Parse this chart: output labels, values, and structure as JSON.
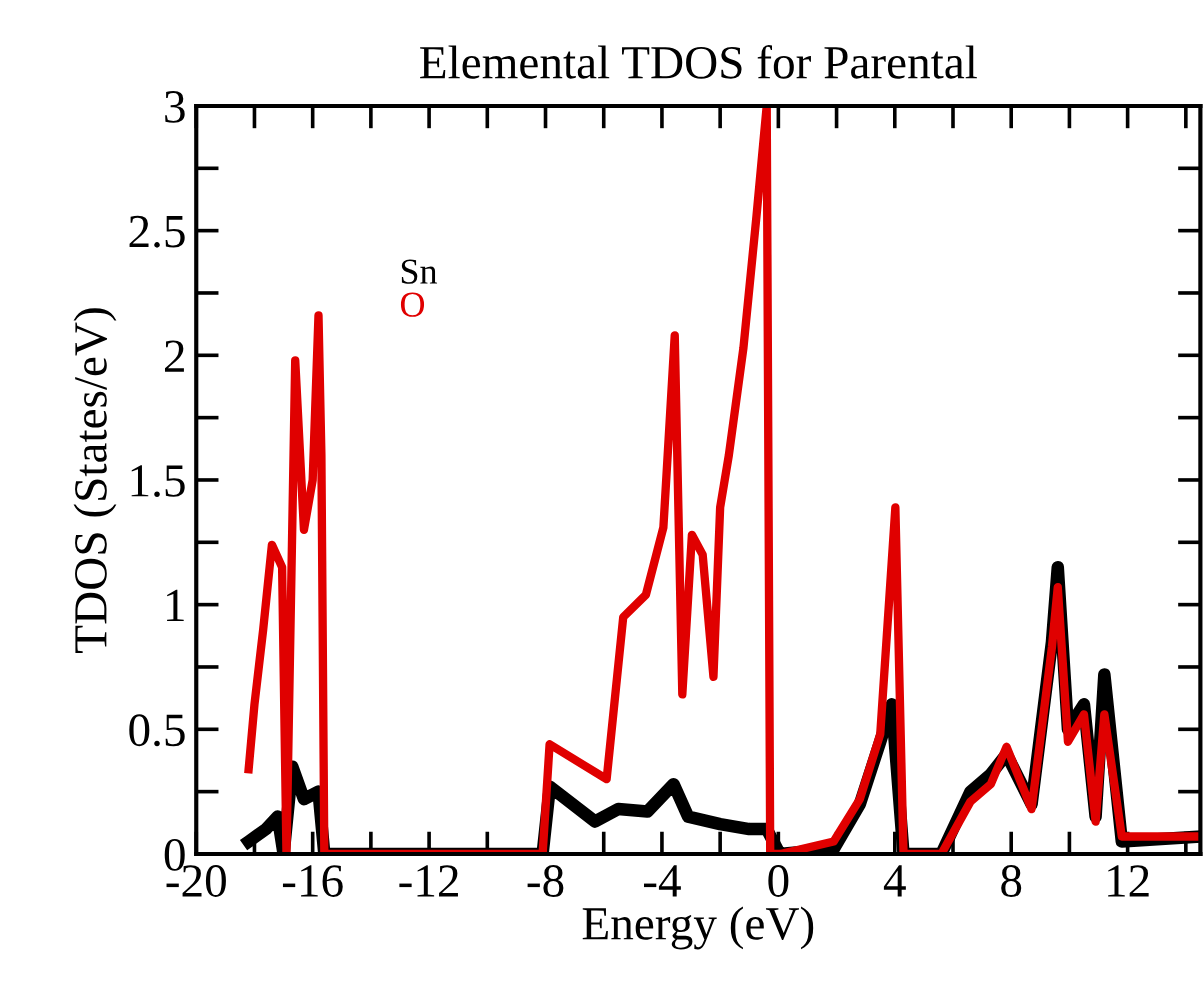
{
  "chart_data": {
    "type": "line",
    "title": "Elemental TDOS for Parental",
    "xlabel": "Energy (eV)",
    "ylabel": "TDOS (States/eV)",
    "xlim": [
      -20,
      14.5
    ],
    "xticks": [
      -20,
      {
        "value": -18,
        "label": null
      },
      -16,
      {
        "value": -14,
        "label": null
      },
      -12,
      {
        "value": -10,
        "label": null
      },
      -8,
      {
        "value": -6,
        "label": null
      },
      -4,
      {
        "value": -2,
        "label": null
      },
      0,
      {
        "value": 2,
        "label": null
      },
      4,
      {
        "value": 6,
        "label": null
      },
      8,
      {
        "value": 10,
        "label": null
      },
      12,
      {
        "value": 14,
        "label": null
      }
    ],
    "ylim": [
      0,
      3
    ],
    "yticks": [
      0,
      {
        "value": 0.25,
        "label": null
      },
      0.5,
      {
        "value": 0.75,
        "label": null
      },
      1,
      {
        "value": 1.25,
        "label": null
      },
      1.5,
      {
        "value": 1.75,
        "label": null
      },
      2,
      {
        "value": 2.25,
        "label": null
      },
      2.5,
      {
        "value": 2.75,
        "label": null
      },
      3
    ],
    "grid": false,
    "legend": "top left",
    "marker": "none",
    "line_style": "solid",
    "series": [
      {
        "name": "Sn",
        "color": "#000000",
        "x": [
          -18.2,
          -17.6,
          -17.2,
          -17.0,
          -16.7,
          -16.3,
          -15.8,
          -15.6,
          -8.1,
          -7.85,
          -6.3,
          -5.5,
          -4.5,
          -3.6,
          -3.1,
          -2.0,
          -1.0,
          -0.4,
          0.05,
          1.9,
          2.8,
          3.5,
          3.9,
          4.3,
          5.6,
          6.6,
          7.3,
          7.84,
          8.7,
          9.4,
          9.6,
          9.95,
          10.5,
          10.9,
          11.2,
          11.8,
          14.5
        ],
        "values": [
          0.05,
          0.1,
          0.15,
          0.0,
          0.35,
          0.22,
          0.25,
          0,
          0,
          0.27,
          0.13,
          0.18,
          0.17,
          0.28,
          0.15,
          0.12,
          0.1,
          0.1,
          0,
          0.02,
          0.2,
          0.45,
          0.6,
          0,
          0,
          0.25,
          0.32,
          0.4,
          0.2,
          0.85,
          1.15,
          0.5,
          0.6,
          0.15,
          0.72,
          0.05,
          0.07
        ]
      },
      {
        "name": "O",
        "color": "#e00000",
        "x": [
          -18.2,
          -18.0,
          -17.7,
          -17.4,
          -17.05,
          -16.9,
          -16.6,
          -16.3,
          -16.0,
          -15.8,
          -15.7,
          -15.6,
          -8.1,
          -7.86,
          -5.9,
          -5.33,
          -4.55,
          -3.95,
          -3.56,
          -3.3,
          -2.97,
          -2.6,
          -2.23,
          -2.0,
          -1.7,
          -1.2,
          -0.75,
          -0.4,
          -0.28,
          0.07,
          1.9,
          2.8,
          3.5,
          4.02,
          4.3,
          5.6,
          6.6,
          7.3,
          7.84,
          8.7,
          9.4,
          9.6,
          9.95,
          10.5,
          10.9,
          11.2,
          11.8,
          14.5
        ],
        "values": [
          0.34,
          0.6,
          0.9,
          1.24,
          1.15,
          0.0,
          1.98,
          1.3,
          1.5,
          2.16,
          1.6,
          0,
          0,
          0.44,
          0.3,
          0.95,
          1.04,
          1.31,
          2.08,
          0.64,
          1.28,
          1.2,
          0.71,
          1.39,
          1.6,
          2.03,
          2.56,
          3.0,
          0,
          0,
          0.05,
          0.22,
          0.48,
          1.39,
          0,
          0,
          0.21,
          0.28,
          0.43,
          0.18,
          0.83,
          1.07,
          0.45,
          0.56,
          0.13,
          0.56,
          0.07,
          0.07
        ]
      }
    ]
  }
}
